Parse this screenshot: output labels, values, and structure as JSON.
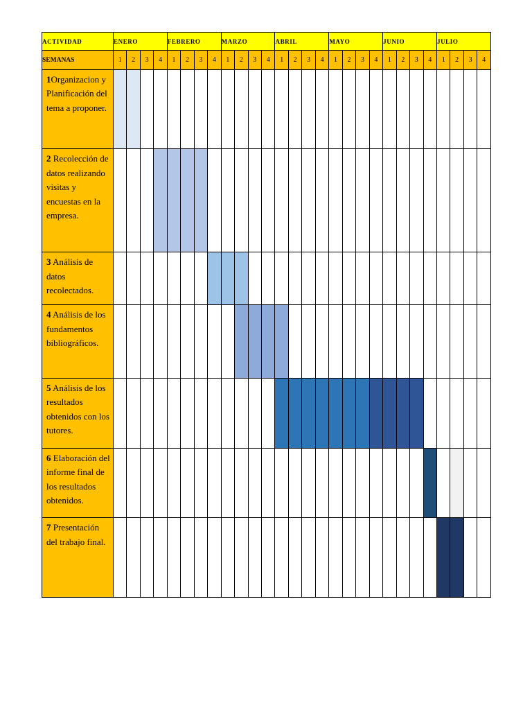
{
  "table": {
    "header_label": "ACTIVIDAD",
    "weeks_label": "SEMANAS",
    "months": [
      "ENERO",
      "FEBRERO",
      "MARZO",
      "ABRIL",
      "MAYO",
      "JUNIO",
      "JULIO"
    ],
    "weeks": [
      "1",
      "2",
      "3",
      "4"
    ],
    "activities": [
      {
        "num": "1",
        "text": "Organizacion y Planificación del tema a proponer.",
        "start": 1,
        "end": 2,
        "color": "#dde8f5"
      },
      {
        "num": "2",
        "text": " Recolección de datos realizando visitas y encuestas en la empresa.",
        "start": 4,
        "end": 7,
        "color": "#b4c6e7"
      },
      {
        "num": "3",
        "text": " Análisis de datos recolectados.",
        "start": 8,
        "end": 10,
        "color": "#9dc3e6"
      },
      {
        "num": "4",
        "text": " Análisis de los fundamentos bibliográficos.",
        "start": 10,
        "end": 13,
        "color": "#8eaadb"
      },
      {
        "num": "5",
        "text": " Análisis de los resultados obtenidos con los tutores.",
        "start": 20,
        "end": 23,
        "color": "#2f5597"
      },
      {
        "num": "6",
        "text": " Elaboración del informe final de los resultados obtenidos.",
        "start": 24,
        "end": 24,
        "color": "#1f4e79"
      },
      {
        "num": "7",
        "text": " Presentación del trabajo final.",
        "start": 25,
        "end": 26,
        "color": "#203864"
      }
    ],
    "extra_fills": [
      {
        "row": 4,
        "start": 13,
        "end": 19,
        "color": "#2e75b6"
      },
      {
        "row": 5,
        "start": 26,
        "end": 26,
        "color": "#f2f2f2"
      }
    ],
    "row_heights": [
      100,
      130,
      66,
      92,
      88,
      88,
      100,
      90
    ]
  }
}
